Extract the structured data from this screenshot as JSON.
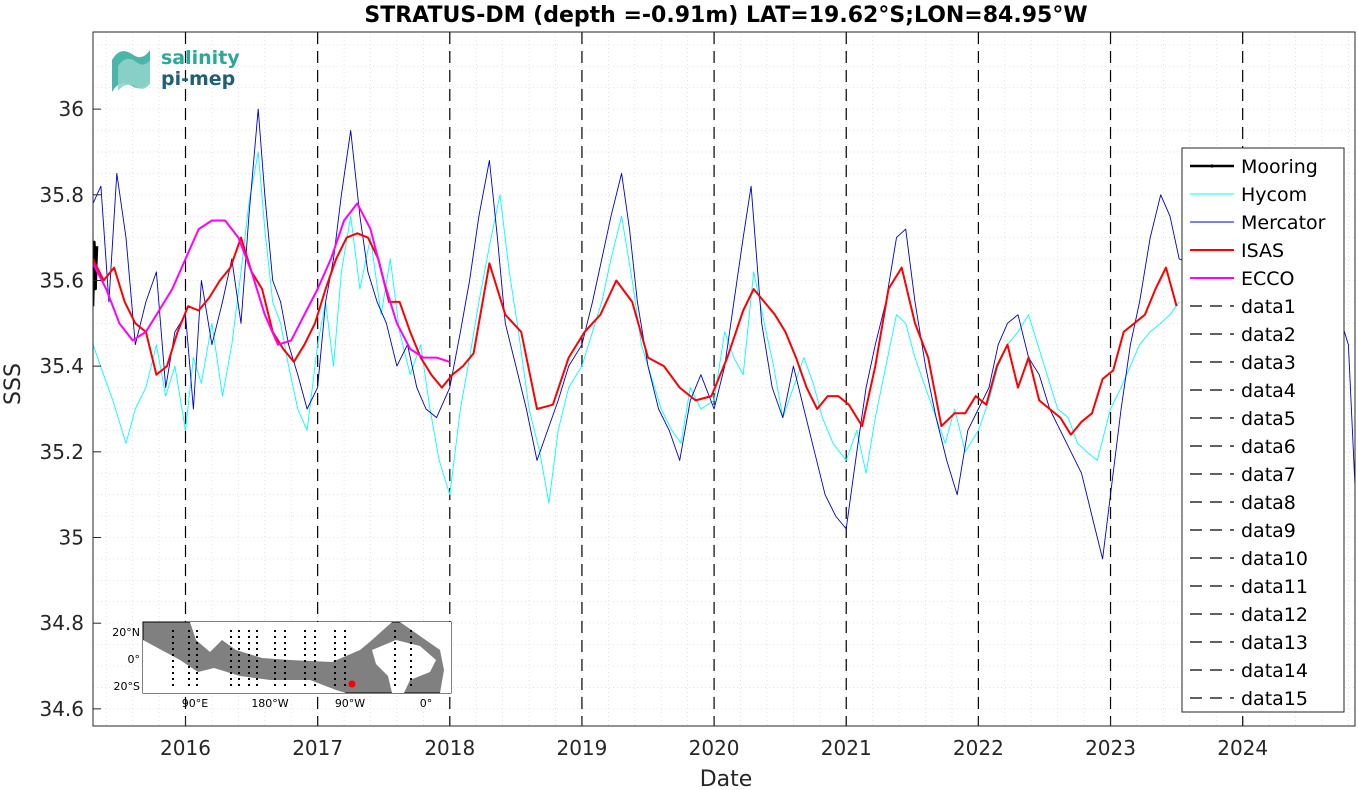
{
  "chart_data": {
    "type": "line",
    "title": "STRATUS-DM (depth =-0.91m) LAT=19.62°S;LON=84.95°W",
    "xlabel": "Date",
    "ylabel": "SSS",
    "xlim": [
      2015.3,
      2024.85
    ],
    "ylim": [
      34.56,
      36.18
    ],
    "x_ticks": [
      2016,
      2017,
      2018,
      2019,
      2020,
      2021,
      2022,
      2023,
      2024
    ],
    "x_tick_labels": [
      "2016",
      "2017",
      "2018",
      "2019",
      "2020",
      "2021",
      "2022",
      "2023",
      "2024"
    ],
    "y_ticks": [
      34.6,
      34.8,
      35,
      35.2,
      35.4,
      35.6,
      35.8,
      36
    ],
    "y_tick_labels": [
      "34.6",
      "34.8",
      "35",
      "35.2",
      "35.4",
      "35.6",
      "35.8",
      "36"
    ],
    "grid": true,
    "legend_position": "right",
    "series": [
      {
        "name": "Mooring",
        "color": "#000000",
        "x": [
          2015.3,
          2015.305,
          2015.31,
          2015.315,
          2015.32,
          2015.325,
          2015.33
        ],
        "y": [
          35.54,
          35.62,
          35.69,
          35.66,
          35.58,
          35.64,
          35.68
        ]
      },
      {
        "name": "Hycom",
        "color": "#00ffff",
        "x": [
          2015.3,
          2015.38,
          2015.45,
          2015.55,
          2015.62,
          2015.7,
          2015.78,
          2015.85,
          2015.92,
          2016.0,
          2016.06,
          2016.12,
          2016.2,
          2016.28,
          2016.35,
          2016.42,
          2016.48,
          2016.55,
          2016.6,
          2016.66,
          2016.72,
          2016.78,
          2016.85,
          2016.92,
          2017.0,
          2017.06,
          2017.12,
          2017.18,
          2017.25,
          2017.32,
          2017.4,
          2017.48,
          2017.55,
          2017.62,
          2017.7,
          2017.78,
          2017.85,
          2017.92,
          2018.0,
          2018.08,
          2018.15,
          2018.22,
          2018.3,
          2018.38,
          2018.45,
          2018.52,
          2018.6,
          2018.68,
          2018.75,
          2018.82,
          2018.9,
          2019.0,
          2019.08,
          2019.15,
          2019.22,
          2019.3,
          2019.38,
          2019.45,
          2019.52,
          2019.6,
          2019.68,
          2019.75,
          2019.82,
          2019.9,
          2020.0,
          2020.08,
          2020.15,
          2020.22,
          2020.3,
          2020.38,
          2020.45,
          2020.52,
          2020.6,
          2020.68,
          2020.75,
          2020.82,
          2020.9,
          2021.0,
          2021.08,
          2021.15,
          2021.22,
          2021.3,
          2021.38,
          2021.45,
          2021.52,
          2021.6,
          2021.68,
          2021.75,
          2021.82,
          2021.9,
          2022.0,
          2022.08,
          2022.15,
          2022.22,
          2022.3,
          2022.38,
          2022.45,
          2022.52,
          2022.6,
          2022.68,
          2022.75,
          2022.82,
          2022.9,
          2023.0,
          2023.08,
          2023.15,
          2023.22,
          2023.3,
          2023.38,
          2023.45,
          2023.52
        ],
        "y": [
          35.45,
          35.38,
          35.32,
          35.22,
          35.3,
          35.35,
          35.45,
          35.33,
          35.4,
          35.25,
          35.42,
          35.36,
          35.5,
          35.33,
          35.45,
          35.62,
          35.78,
          35.9,
          35.72,
          35.55,
          35.5,
          35.4,
          35.3,
          35.25,
          35.45,
          35.55,
          35.4,
          35.62,
          35.75,
          35.58,
          35.7,
          35.52,
          35.65,
          35.48,
          35.38,
          35.45,
          35.3,
          35.18,
          35.1,
          35.3,
          35.42,
          35.55,
          35.68,
          35.8,
          35.62,
          35.48,
          35.3,
          35.2,
          35.08,
          35.25,
          35.35,
          35.4,
          35.48,
          35.55,
          35.65,
          35.75,
          35.6,
          35.45,
          35.38,
          35.3,
          35.25,
          35.22,
          35.35,
          35.3,
          35.32,
          35.48,
          35.42,
          35.38,
          35.62,
          35.5,
          35.4,
          35.28,
          35.35,
          35.42,
          35.36,
          35.28,
          35.22,
          35.18,
          35.25,
          35.15,
          35.28,
          35.4,
          35.52,
          35.5,
          35.42,
          35.35,
          35.28,
          35.22,
          35.3,
          35.2,
          35.25,
          35.32,
          35.4,
          35.45,
          35.48,
          35.52,
          35.45,
          35.38,
          35.3,
          35.28,
          35.22,
          35.2,
          35.18,
          35.3,
          35.35,
          35.4,
          35.45,
          35.48,
          35.5,
          35.52,
          35.55
        ]
      },
      {
        "name": "Mercator",
        "color": "#0000cc",
        "x": [
          2015.3,
          2015.36,
          2015.42,
          2015.48,
          2015.55,
          2015.62,
          2015.7,
          2015.78,
          2015.85,
          2015.92,
          2016.0,
          2016.06,
          2016.12,
          2016.2,
          2016.28,
          2016.35,
          2016.42,
          2016.48,
          2016.55,
          2016.6,
          2016.66,
          2016.72,
          2016.78,
          2016.85,
          2016.92,
          2017.0,
          2017.06,
          2017.12,
          2017.18,
          2017.25,
          2017.32,
          2017.38,
          2017.45,
          2017.52,
          2017.6,
          2017.68,
          2017.75,
          2017.82,
          2017.9,
          2018.0,
          2018.08,
          2018.15,
          2018.22,
          2018.3,
          2018.36,
          2018.42,
          2018.5,
          2018.58,
          2018.66,
          2018.74,
          2018.82,
          2018.9,
          2019.0,
          2019.08,
          2019.15,
          2019.22,
          2019.3,
          2019.36,
          2019.42,
          2019.5,
          2019.58,
          2019.66,
          2019.74,
          2019.82,
          2019.9,
          2020.0,
          2020.08,
          2020.15,
          2020.22,
          2020.28,
          2020.36,
          2020.44,
          2020.52,
          2020.6,
          2020.68,
          2020.76,
          2020.84,
          2020.92,
          2021.0,
          2021.08,
          2021.15,
          2021.22,
          2021.3,
          2021.38,
          2021.45,
          2021.52,
          2021.6,
          2021.68,
          2021.76,
          2021.84,
          2021.92,
          2022.0,
          2022.08,
          2022.15,
          2022.22,
          2022.3,
          2022.38,
          2022.46,
          2022.54,
          2022.62,
          2022.7,
          2022.78,
          2022.86,
          2022.94,
          2023.0,
          2023.08,
          2023.15,
          2023.22,
          2023.3,
          2023.38,
          2023.45,
          2023.52,
          2024.75,
          2024.8,
          2024.85
        ],
        "y": [
          35.78,
          35.82,
          35.55,
          35.85,
          35.7,
          35.45,
          35.55,
          35.62,
          35.35,
          35.48,
          35.52,
          35.3,
          35.6,
          35.45,
          35.55,
          35.65,
          35.5,
          35.75,
          36.0,
          35.8,
          35.6,
          35.55,
          35.45,
          35.38,
          35.3,
          35.35,
          35.55,
          35.65,
          35.8,
          35.95,
          35.75,
          35.62,
          35.55,
          35.5,
          35.4,
          35.45,
          35.35,
          35.3,
          35.28,
          35.35,
          35.48,
          35.6,
          35.75,
          35.88,
          35.7,
          35.5,
          35.4,
          35.3,
          35.18,
          35.25,
          35.32,
          35.4,
          35.45,
          35.55,
          35.65,
          35.75,
          35.85,
          35.72,
          35.55,
          35.4,
          35.3,
          35.25,
          35.18,
          35.32,
          35.38,
          35.3,
          35.4,
          35.55,
          35.7,
          35.82,
          35.5,
          35.35,
          35.28,
          35.4,
          35.3,
          35.2,
          35.1,
          35.05,
          35.02,
          35.2,
          35.35,
          35.45,
          35.55,
          35.7,
          35.72,
          35.55,
          35.4,
          35.28,
          35.18,
          35.1,
          35.25,
          35.3,
          35.35,
          35.45,
          35.5,
          35.52,
          35.42,
          35.38,
          35.3,
          35.25,
          35.2,
          35.15,
          35.05,
          34.95,
          35.1,
          35.3,
          35.45,
          35.55,
          35.7,
          35.8,
          35.75,
          35.65,
          35.5,
          35.45,
          35.12
        ]
      },
      {
        "name": "ISAS",
        "color": "#ff0000",
        "x": [
          2015.3,
          2015.38,
          2015.46,
          2015.54,
          2015.62,
          2015.7,
          2015.78,
          2015.86,
          2015.94,
          2016.02,
          2016.1,
          2016.18,
          2016.26,
          2016.34,
          2016.42,
          2016.5,
          2016.58,
          2016.66,
          2016.74,
          2016.82,
          2016.9,
          2016.98,
          2017.06,
          2017.14,
          2017.22,
          2017.3,
          2017.38,
          2017.46,
          2017.54,
          2017.62,
          2017.7,
          2017.78,
          2017.86,
          2017.94,
          2018.02,
          2018.1,
          2018.18,
          2018.3,
          2018.42,
          2018.54,
          2018.66,
          2018.78,
          2018.9,
          2019.02,
          2019.14,
          2019.26,
          2019.38,
          2019.5,
          2019.62,
          2019.74,
          2019.86,
          2019.98,
          2020.1,
          2020.22,
          2020.3,
          2020.38,
          2020.46,
          2020.54,
          2020.62,
          2020.7,
          2020.78,
          2020.86,
          2020.94,
          2021.02,
          2021.12,
          2021.22,
          2021.32,
          2021.42,
          2021.52,
          2021.62,
          2021.72,
          2021.82,
          2021.9,
          2021.98,
          2022.06,
          2022.14,
          2022.22,
          2022.3,
          2022.38,
          2022.46,
          2022.54,
          2022.62,
          2022.7,
          2022.78,
          2022.86,
          2022.94,
          2023.02,
          2023.1,
          2023.18,
          2023.26,
          2023.34,
          2023.42,
          2023.5
        ],
        "y": [
          35.65,
          35.6,
          35.63,
          35.55,
          35.5,
          35.48,
          35.38,
          35.4,
          35.48,
          35.54,
          35.53,
          35.56,
          35.6,
          35.63,
          35.7,
          35.62,
          35.58,
          35.48,
          35.44,
          35.41,
          35.45,
          35.5,
          35.58,
          35.65,
          35.7,
          35.71,
          35.7,
          35.65,
          35.55,
          35.55,
          35.48,
          35.42,
          35.38,
          35.35,
          35.38,
          35.4,
          35.43,
          35.64,
          35.52,
          35.48,
          35.3,
          35.31,
          35.42,
          35.48,
          35.52,
          35.6,
          35.55,
          35.42,
          35.4,
          35.35,
          35.32,
          35.33,
          35.42,
          35.53,
          35.58,
          35.55,
          35.52,
          35.48,
          35.42,
          35.35,
          35.3,
          35.33,
          35.33,
          35.31,
          35.26,
          35.4,
          35.58,
          35.63,
          35.5,
          35.42,
          35.26,
          35.29,
          35.29,
          35.33,
          35.31,
          35.4,
          35.45,
          35.35,
          35.42,
          35.32,
          35.3,
          35.28,
          35.24,
          35.27,
          35.29,
          35.37,
          35.39,
          35.48,
          35.5,
          35.52,
          35.58,
          35.63,
          35.54
        ]
      },
      {
        "name": "ECCO",
        "color": "#ff00ff",
        "x": [
          2015.3,
          2015.4,
          2015.5,
          2015.6,
          2015.7,
          2015.8,
          2015.9,
          2016.0,
          2016.1,
          2016.2,
          2016.3,
          2016.4,
          2016.5,
          2016.6,
          2016.7,
          2016.8,
          2016.9,
          2017.0,
          2017.1,
          2017.2,
          2017.3,
          2017.4,
          2017.5,
          2017.6,
          2017.7,
          2017.8,
          2017.9,
          2018.0
        ],
        "y": [
          35.64,
          35.58,
          35.5,
          35.46,
          35.48,
          35.53,
          35.58,
          35.65,
          35.72,
          35.74,
          35.74,
          35.7,
          35.62,
          35.52,
          35.45,
          35.46,
          35.52,
          35.58,
          35.65,
          35.74,
          35.78,
          35.72,
          35.6,
          35.5,
          35.44,
          35.42,
          35.42,
          35.41
        ]
      }
    ],
    "reference_lines": {
      "x": [
        2016,
        2017,
        2018,
        2019,
        2020,
        2021,
        2022,
        2023,
        2024
      ],
      "names": [
        "data1",
        "data2",
        "data3",
        "data4",
        "data5",
        "data6",
        "data7",
        "data8",
        "data9",
        "data10",
        "data11",
        "data12",
        "data13",
        "data14",
        "data15"
      ]
    }
  },
  "logo": {
    "line1": "salinity",
    "line2": "pi-mep",
    "color1": "#2aa89a",
    "color2": "#1f5f78"
  },
  "inset_map": {
    "lat_labels": [
      "20°N",
      "0°",
      "20°S"
    ],
    "lon_labels": [
      "90°E",
      "180°W",
      "90°W",
      "0°"
    ],
    "marker_color": "#ff0000"
  }
}
